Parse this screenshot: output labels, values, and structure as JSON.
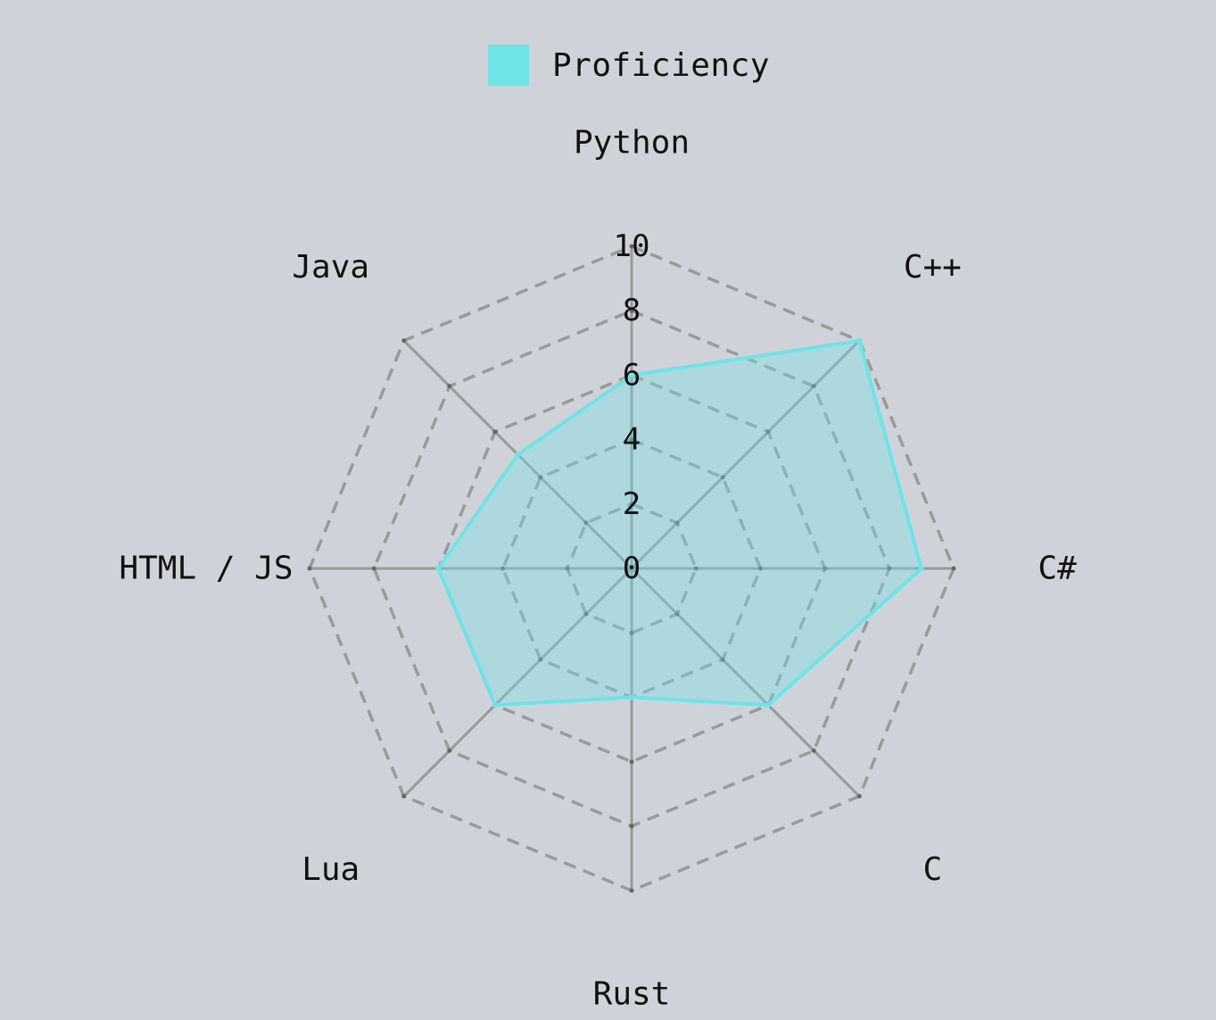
{
  "chart_data": {
    "type": "radar",
    "title": "",
    "categories": [
      "Python",
      "C++",
      "C#",
      "C",
      "Rust",
      "Lua",
      "HTML / JS",
      "Java"
    ],
    "series": [
      {
        "name": "Proficiency",
        "values": [
          6,
          10,
          9,
          6,
          4,
          6,
          6,
          5
        ],
        "color": "#6ee3e8",
        "fill_color": "rgba(110,227,232,0.35)"
      }
    ],
    "rlim": [
      0,
      10
    ],
    "ticks": [
      0,
      2,
      4,
      6,
      8,
      10
    ],
    "tick_labels": [
      "0",
      "2",
      "4",
      "6",
      "8",
      "10"
    ],
    "grid": true,
    "legend_position": "top-center"
  },
  "colors": {
    "background": "#cfd3d9",
    "grid": "#9a9a9a",
    "spoke": "#8e8e8e",
    "text": "#111111"
  }
}
